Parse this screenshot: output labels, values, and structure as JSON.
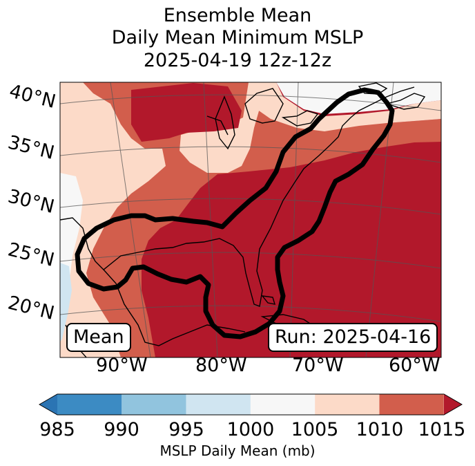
{
  "title": {
    "line1": "Ensemble Mean",
    "line2": "Daily Mean Minimum MSLP",
    "line3": "2025-04-19 12z-12z"
  },
  "map": {
    "lat_labels": [
      "40°N",
      "35°N",
      "30°N",
      "25°N",
      "20°N"
    ],
    "lon_labels": [
      "90°W",
      "80°W",
      "70°W",
      "60°W"
    ],
    "mean_box": "Mean",
    "run_box": "Run: 2025-04-16",
    "colors": {
      "c985": "#2b74b3",
      "c990": "#91c4de",
      "c995": "#d0e5f1",
      "c1000": "#f7f7f7",
      "c1005": "#fcdac8",
      "c1010": "#d25e4c",
      "c1015": "#b2182b"
    }
  },
  "colorbar": {
    "ticks": [
      "985",
      "990",
      "995",
      "1000",
      "1005",
      "1010",
      "1015"
    ],
    "label": "MSLP Daily Mean (mb)",
    "colors": [
      "#3c8bc3",
      "#91c4de",
      "#d0e5f1",
      "#f7f7f7",
      "#fcdac8",
      "#d25e4c"
    ],
    "under_color": "#2b74b3",
    "over_color": "#b2182b"
  }
}
